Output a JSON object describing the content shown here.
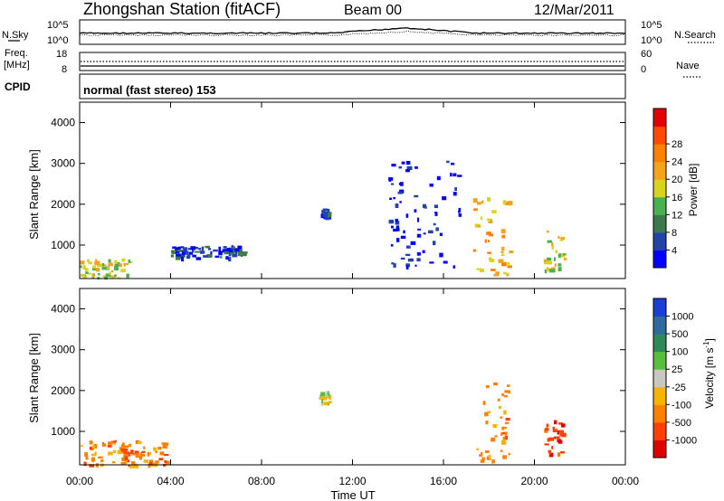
{
  "header": {
    "title": "Zhongshan Station (fitACF)",
    "beam": "Beam 00",
    "date": "12/Mar/2011"
  },
  "noise_panel": {
    "left_label": "N.Sky",
    "left_ticks": [
      "10^5",
      "10^0"
    ],
    "right_label": "N.Search",
    "right_ticks": [
      "10^5",
      "10^0"
    ]
  },
  "freq_panel": {
    "left_label_1": "Freq.",
    "left_label_2": "[MHz]",
    "left_ticks": [
      "18",
      "8"
    ],
    "right_label": "Nave",
    "right_ticks": [
      "60",
      "0"
    ]
  },
  "cpid_panel": {
    "label": "CPID",
    "mode_text": "normal (fast stereo) 153"
  },
  "chart_data": [
    {
      "type": "heatmap",
      "panel": "power",
      "ylabel": "Slant Range [km]",
      "yticks": [
        "1000",
        "2000",
        "3000",
        "4000"
      ],
      "ylim": [
        180,
        4500
      ],
      "x_ticks": [
        "00:00",
        "04:00",
        "08:00",
        "12:00",
        "16:00",
        "20:00",
        "00:00"
      ],
      "colorbar_label": "Power [dB]",
      "colorbar_ticks": [
        "4",
        "8",
        "12",
        "16",
        "20",
        "24",
        "28"
      ],
      "colorbar_colors": [
        "#0000ff",
        "#2244aa",
        "#3a7a4a",
        "#49b14f",
        "#d8d41b",
        "#f5a21d",
        "#ff7f00",
        "#ff4a00",
        "#e20000"
      ],
      "echo_regions": [
        {
          "t_start": 0.0,
          "t_end": 2.2,
          "r_min": 180,
          "r_max": 700,
          "power_db": 18
        },
        {
          "t_start": 4.0,
          "t_end": 7.2,
          "r_min": 700,
          "r_max": 1000,
          "power_db": 6
        },
        {
          "t_start": 10.6,
          "t_end": 11.0,
          "r_min": 1700,
          "r_max": 1900,
          "power_db": 8
        },
        {
          "t_start": 13.5,
          "t_end": 16.7,
          "r_min": 500,
          "r_max": 3100,
          "power_db": 4
        },
        {
          "t_start": 17.3,
          "t_end": 18.9,
          "r_min": 250,
          "r_max": 2300,
          "power_db": 22
        },
        {
          "t_start": 20.4,
          "t_end": 21.3,
          "r_min": 400,
          "r_max": 1400,
          "power_db": 20
        }
      ]
    },
    {
      "type": "heatmap",
      "panel": "velocity",
      "ylabel": "Slant Range [km]",
      "yticks": [
        "1000",
        "2000",
        "3000",
        "4000"
      ],
      "ylim": [
        180,
        4500
      ],
      "x_ticks": [
        "00:00",
        "04:00",
        "08:00",
        "12:00",
        "16:00",
        "20:00",
        "00:00"
      ],
      "xlabel": "Time UT",
      "colorbar_label": "Velocity [m s",
      "colorbar_label_sup": "-1",
      "colorbar_label_end": "]",
      "colorbar_ticks": [
        "1000",
        "500",
        "100",
        "25",
        "-25",
        "-100",
        "-500",
        "-1000"
      ],
      "colorbar_colors": [
        "#1a3fd8",
        "#2f6aa0",
        "#2e8b57",
        "#56c03e",
        "#c8c8c0",
        "#f6b400",
        "#ff8000",
        "#ff4000",
        "#e00000"
      ],
      "echo_regions": [
        {
          "t_start": 0.0,
          "t_end": 3.8,
          "r_min": 180,
          "r_max": 800,
          "velocity": -300
        },
        {
          "t_start": 10.5,
          "t_end": 11.0,
          "r_min": 1700,
          "r_max": 2000,
          "velocity": 0
        },
        {
          "t_start": 17.4,
          "t_end": 18.9,
          "r_min": 300,
          "r_max": 2200,
          "velocity": -400
        },
        {
          "t_start": 20.4,
          "t_end": 21.2,
          "r_min": 400,
          "r_max": 1300,
          "velocity": -600
        }
      ]
    }
  ]
}
